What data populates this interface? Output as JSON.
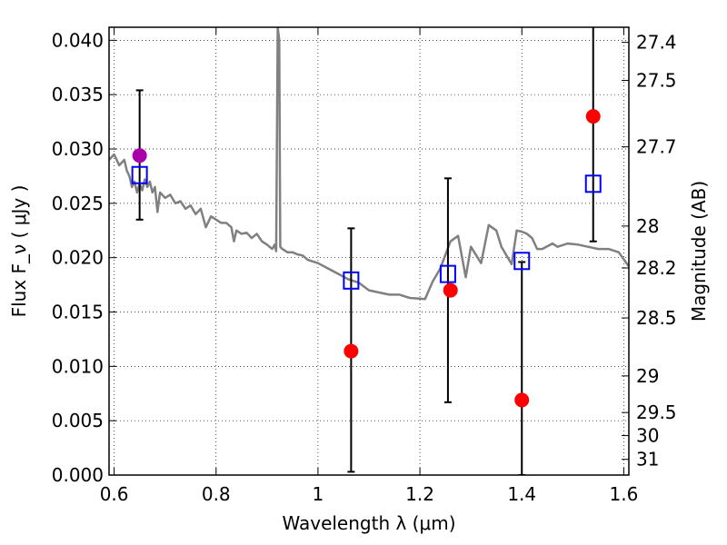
{
  "chart_data": {
    "type": "scatter",
    "xlabel": "Wavelength  λ (μm)",
    "ylabel": "Flux  F_ν  ( μJy )",
    "ylabel_right": "Magnitude (AB)",
    "xlim": [
      0.59,
      1.61
    ],
    "ylim": [
      0.0,
      0.0412
    ],
    "grid": true,
    "x_ticks": [
      0.6,
      0.8,
      1.0,
      1.2,
      1.4,
      1.6
    ],
    "x_tick_labels": [
      "0.6",
      "0.8",
      "1",
      "1.2",
      "1.4",
      "1.6"
    ],
    "y_ticks": [
      0.0,
      0.005,
      0.01,
      0.015,
      0.02,
      0.025,
      0.03,
      0.035,
      0.04
    ],
    "y_tick_labels": [
      "0.000",
      "0.005",
      "0.010",
      "0.015",
      "0.020",
      "0.025",
      "0.030",
      "0.035",
      "0.040"
    ],
    "right_ticks": [
      {
        "mag": 27.4,
        "label": "27.4"
      },
      {
        "mag": 27.5,
        "label": "27.5"
      },
      {
        "mag": 27.7,
        "label": "27.7"
      },
      {
        "mag": 28.0,
        "label": "28"
      },
      {
        "mag": 28.2,
        "label": "28.2"
      },
      {
        "mag": 28.5,
        "label": "28.5"
      },
      {
        "mag": 29.0,
        "label": "29"
      },
      {
        "mag": 29.5,
        "label": "29.5"
      },
      {
        "mag": 30.0,
        "label": "30"
      },
      {
        "mag": 31.0,
        "label": "31"
      }
    ],
    "series": [
      {
        "kind": "line",
        "color": "#808080",
        "points": [
          [
            0.59,
            0.029
          ],
          [
            0.6,
            0.0295
          ],
          [
            0.61,
            0.0285
          ],
          [
            0.62,
            0.029
          ],
          [
            0.625,
            0.028
          ],
          [
            0.63,
            0.0275
          ],
          [
            0.635,
            0.0265
          ],
          [
            0.64,
            0.027
          ],
          [
            0.645,
            0.026
          ],
          [
            0.65,
            0.0268
          ],
          [
            0.655,
            0.0262
          ],
          [
            0.66,
            0.0272
          ],
          [
            0.665,
            0.0265
          ],
          [
            0.67,
            0.027
          ],
          [
            0.675,
            0.026
          ],
          [
            0.68,
            0.0265
          ],
          [
            0.685,
            0.0242
          ],
          [
            0.69,
            0.026
          ],
          [
            0.7,
            0.0255
          ],
          [
            0.71,
            0.0258
          ],
          [
            0.72,
            0.025
          ],
          [
            0.73,
            0.0252
          ],
          [
            0.74,
            0.0245
          ],
          [
            0.75,
            0.0248
          ],
          [
            0.76,
            0.024
          ],
          [
            0.77,
            0.0245
          ],
          [
            0.78,
            0.0228
          ],
          [
            0.79,
            0.0238
          ],
          [
            0.8,
            0.0235
          ],
          [
            0.81,
            0.0232
          ],
          [
            0.82,
            0.0232
          ],
          [
            0.83,
            0.0228
          ],
          [
            0.835,
            0.0215
          ],
          [
            0.84,
            0.0225
          ],
          [
            0.85,
            0.0222
          ],
          [
            0.86,
            0.0223
          ],
          [
            0.87,
            0.0218
          ],
          [
            0.88,
            0.0222
          ],
          [
            0.89,
            0.0215
          ],
          [
            0.9,
            0.0212
          ],
          [
            0.91,
            0.0208
          ],
          [
            0.915,
            0.0212
          ],
          [
            0.918,
            0.0206
          ],
          [
            0.921,
            0.0412
          ],
          [
            0.924,
            0.04
          ],
          [
            0.926,
            0.021
          ],
          [
            0.93,
            0.0208
          ],
          [
            0.94,
            0.0205
          ],
          [
            0.95,
            0.0205
          ],
          [
            0.96,
            0.0203
          ],
          [
            0.97,
            0.0202
          ],
          [
            0.98,
            0.0198
          ],
          [
            1.0,
            0.0195
          ],
          [
            1.02,
            0.019
          ],
          [
            1.04,
            0.0185
          ],
          [
            1.06,
            0.018
          ],
          [
            1.08,
            0.0177
          ],
          [
            1.1,
            0.017
          ],
          [
            1.12,
            0.0168
          ],
          [
            1.14,
            0.0166
          ],
          [
            1.16,
            0.0166
          ],
          [
            1.18,
            0.0163
          ],
          [
            1.21,
            0.0162
          ],
          [
            1.225,
            0.0178
          ],
          [
            1.24,
            0.019
          ],
          [
            1.26,
            0.0215
          ],
          [
            1.275,
            0.022
          ],
          [
            1.29,
            0.0182
          ],
          [
            1.3,
            0.021
          ],
          [
            1.32,
            0.0195
          ],
          [
            1.335,
            0.023
          ],
          [
            1.35,
            0.0225
          ],
          [
            1.36,
            0.021
          ],
          [
            1.38,
            0.0194
          ],
          [
            1.39,
            0.0225
          ],
          [
            1.4,
            0.0224
          ],
          [
            1.41,
            0.0222
          ],
          [
            1.42,
            0.0218
          ],
          [
            1.43,
            0.0208
          ],
          [
            1.44,
            0.0208
          ],
          [
            1.46,
            0.0213
          ],
          [
            1.47,
            0.021
          ],
          [
            1.49,
            0.0213
          ],
          [
            1.51,
            0.0212
          ],
          [
            1.53,
            0.021
          ],
          [
            1.55,
            0.0208
          ],
          [
            1.57,
            0.0208
          ],
          [
            1.59,
            0.0205
          ],
          [
            1.61,
            0.0192
          ]
        ]
      },
      {
        "kind": "errorbar",
        "color": "#000000",
        "points": [
          {
            "x": 0.65,
            "low": 0.0235,
            "high": 0.0354
          },
          {
            "x": 1.065,
            "low": 0.0003,
            "high": 0.0227
          },
          {
            "x": 1.255,
            "low": 0.0067,
            "high": 0.0273
          },
          {
            "x": 1.4,
            "low": 0.0,
            "high": 0.0196
          },
          {
            "x": 1.54,
            "low": 0.0215,
            "high": 0.0415
          }
        ]
      },
      {
        "kind": "square",
        "color": "#0000ff",
        "points": [
          [
            0.65,
            0.0276
          ],
          [
            1.065,
            0.0179
          ],
          [
            1.255,
            0.0185
          ],
          [
            1.4,
            0.0197
          ],
          [
            1.54,
            0.0268
          ]
        ]
      },
      {
        "kind": "circle",
        "color": "#ff0000",
        "points": [
          [
            1.065,
            0.0114
          ],
          [
            1.26,
            0.017
          ],
          [
            1.4,
            0.0069
          ],
          [
            1.54,
            0.033
          ]
        ]
      },
      {
        "kind": "circle",
        "color": "#aa00aa",
        "points": [
          [
            0.65,
            0.0294
          ]
        ]
      }
    ]
  }
}
